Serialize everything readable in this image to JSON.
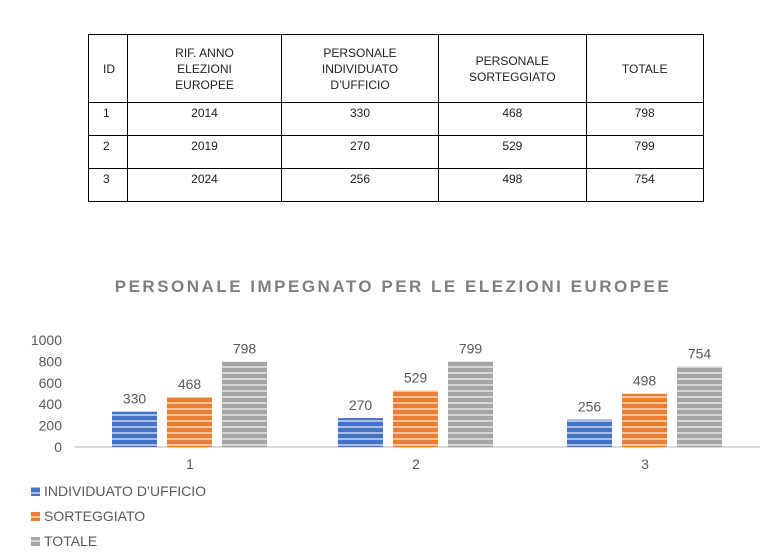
{
  "table": {
    "headers": [
      "ID",
      "RIF. ANNO ELEZIONI EUROPEE",
      "PERSONALE INDIVIDUATO D’UFFICIO",
      "PERSONALE SORTEGGIATO",
      "TOTALE"
    ],
    "rows": [
      [
        "1",
        "2014",
        "330",
        "468",
        "798"
      ],
      [
        "2",
        "2019",
        "270",
        "529",
        "799"
      ],
      [
        "3",
        "2024",
        "256",
        "498",
        "754"
      ]
    ]
  },
  "chart_data": {
    "type": "bar",
    "title": "PERSONALE IMPEGNATO PER LE ELEZIONI EUROPEE",
    "categories": [
      "1",
      "2",
      "3"
    ],
    "series": [
      {
        "name": "INDIVIDUATO D’UFFICIO",
        "values": [
          330,
          270,
          256
        ],
        "color": "#4472C4"
      },
      {
        "name": "SORTEGGIATO",
        "values": [
          468,
          529,
          498
        ],
        "color": "#ED7D31"
      },
      {
        "name": "TOTALE",
        "values": [
          798,
          799,
          754
        ],
        "color": "#A5A5A5"
      }
    ],
    "ylim": [
      0,
      1000
    ],
    "yticks": [
      0,
      200,
      400,
      600,
      800,
      1000
    ],
    "grid": false,
    "data_labels": true,
    "legend": "bottom-left",
    "xlabel": "",
    "ylabel": ""
  }
}
